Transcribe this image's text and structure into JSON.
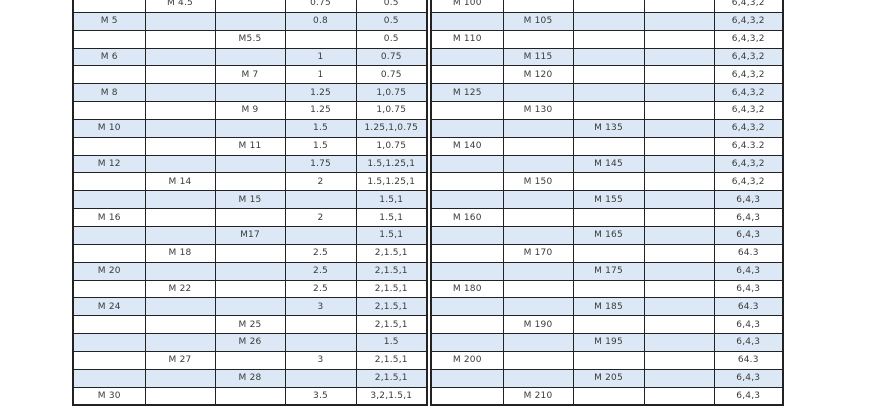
{
  "colors": {
    "stripe": "#dce8f5",
    "border": "#222222",
    "text": "#3a3a3a"
  },
  "left_table": {
    "rows": [
      [
        "",
        "M 4.5",
        "",
        "0.75",
        "0.5"
      ],
      [
        "M 5",
        "",
        "",
        "0.8",
        "0.5"
      ],
      [
        "",
        "",
        "M5.5",
        "",
        "0.5"
      ],
      [
        "M 6",
        "",
        "",
        "1",
        "0.75"
      ],
      [
        "",
        "",
        "M 7",
        "1",
        "0.75"
      ],
      [
        "M 8",
        "",
        "",
        "1.25",
        "1,0.75"
      ],
      [
        "",
        "",
        "M 9",
        "1.25",
        "1,0.75"
      ],
      [
        "M 10",
        "",
        "",
        "1.5",
        "1.25,1,0.75"
      ],
      [
        "",
        "",
        "M 11",
        "1.5",
        "1,0.75"
      ],
      [
        "M 12",
        "",
        "",
        "1.75",
        "1.5,1.25,1"
      ],
      [
        "",
        "M 14",
        "",
        "2",
        "1.5,1.25,1"
      ],
      [
        "",
        "",
        "M  15",
        "",
        "1.5,1"
      ],
      [
        "M 16",
        "",
        "",
        "2",
        "1.5,1"
      ],
      [
        "",
        "",
        "M17",
        "",
        "1.5,1"
      ],
      [
        "",
        "M 18",
        "",
        "2.5",
        "2,1.5,1"
      ],
      [
        "M 20",
        "",
        "",
        "2.5",
        "2,1.5,1"
      ],
      [
        "",
        "M 22",
        "",
        "2.5",
        "2,1.5,1"
      ],
      [
        "M 24",
        "",
        "",
        "3",
        "2,1.5,1"
      ],
      [
        "",
        "",
        "M 25",
        "",
        "2,1.5,1"
      ],
      [
        "",
        "",
        "M 26",
        "",
        "1.5"
      ],
      [
        "",
        "M 27",
        "",
        "3",
        "2,1.5,1"
      ],
      [
        "",
        "",
        "M 28",
        "",
        "2,1.5,1"
      ],
      [
        "M 30",
        "",
        "",
        "3.5",
        "3,2,1.5,1"
      ]
    ]
  },
  "right_table": {
    "rows": [
      [
        "M 100",
        "",
        "",
        "",
        "6,4,3,2"
      ],
      [
        "",
        "M 105",
        "",
        "",
        "6,4,3,2"
      ],
      [
        "M 110",
        "",
        "",
        "",
        "6,4,3,2"
      ],
      [
        "",
        "M 115",
        "",
        "",
        "6,4,3,2"
      ],
      [
        "",
        "M 120",
        "",
        "",
        "6,4,3,2"
      ],
      [
        "M 125",
        "",
        "",
        "",
        "6,4,3,2"
      ],
      [
        "",
        "M 130",
        "",
        "",
        "6,4,3,2"
      ],
      [
        "",
        "",
        "M 135",
        "",
        "6,4,3,2"
      ],
      [
        "M 140",
        "",
        "",
        "",
        "6,4.3.2"
      ],
      [
        "",
        "",
        "M 145",
        "",
        "6,4,3,2"
      ],
      [
        "",
        "M 150",
        "",
        "",
        "6,4,3,2"
      ],
      [
        "",
        "",
        "M 155",
        "",
        "6,4,3"
      ],
      [
        "M 160",
        "",
        "",
        "",
        "6,4,3"
      ],
      [
        "",
        "",
        "M 165",
        "",
        "6,4,3"
      ],
      [
        "",
        "M 170",
        "",
        "",
        "64.3"
      ],
      [
        "",
        "",
        "M 175",
        "",
        "6,4,3"
      ],
      [
        "M 180",
        "",
        "",
        "",
        "6,4,3"
      ],
      [
        "",
        "",
        "M 185",
        "",
        "64.3"
      ],
      [
        "",
        "M 190",
        "",
        "",
        "6,4,3"
      ],
      [
        "",
        "",
        "M 195",
        "",
        "6,4,3"
      ],
      [
        "M 200",
        "",
        "",
        "",
        "64.3"
      ],
      [
        "",
        "",
        "M 205",
        "",
        "6,4,3"
      ],
      [
        "",
        "M 210",
        "",
        "",
        "6,4,3"
      ]
    ]
  }
}
